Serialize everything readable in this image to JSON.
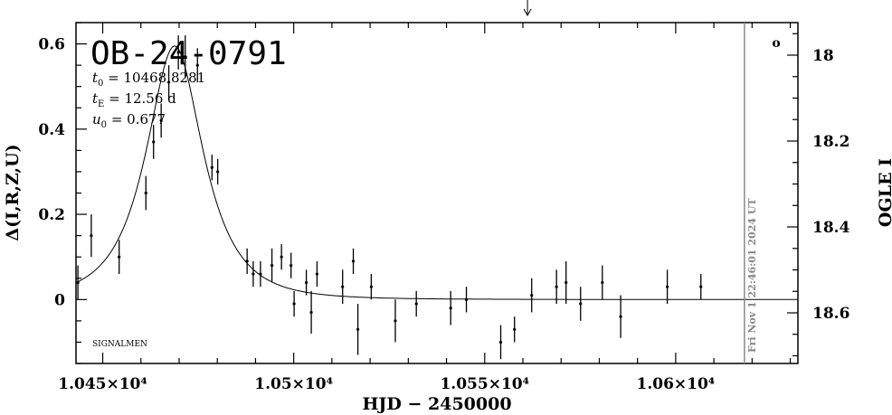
{
  "chart_data": {
    "type": "scatter",
    "title": "OB-24-0791",
    "params": [
      {
        "sym": "t",
        "sub": "0",
        "rest": " = 10468.8281"
      },
      {
        "sym": "t",
        "sub": "E",
        "rest": " = 12.56  d"
      },
      {
        "sym": "u",
        "sub": "0",
        "rest": " = 0.677"
      }
    ],
    "footer_label": "SIGNALMEN",
    "date_stamp": "Fri Nov  1 22:46:01 2024 UT",
    "marker_symbol": "o",
    "xlabel": "HJD  −  2450000",
    "ylabel_left": "Δ(I,R,Z,U)",
    "ylabel_right": "OGLE I",
    "xlim": [
      10443,
      10632
    ],
    "ylim_left": [
      -0.15,
      0.65
    ],
    "ylim_right_ticks": [
      {
        "value": 18.0,
        "label": "18"
      },
      {
        "value": 18.2,
        "label": "18.2"
      },
      {
        "value": 18.4,
        "label": "18.4"
      },
      {
        "value": 18.6,
        "label": "18.6"
      }
    ],
    "x_ticks": [
      {
        "value": 10450,
        "label": "1.045×10⁴"
      },
      {
        "value": 10500,
        "label": "1.05×10⁴"
      },
      {
        "value": 10550,
        "label": "1.055×10⁴"
      },
      {
        "value": 10600,
        "label": "1.06×10⁴"
      }
    ],
    "y_ticks": [
      {
        "value": 0,
        "label": "0"
      },
      {
        "value": 0.2,
        "label": "0.2"
      },
      {
        "value": 0.4,
        "label": "0.4"
      },
      {
        "value": 0.6,
        "label": "0.6"
      }
    ],
    "arrow_x": 10561.2,
    "now_line_x": 10618,
    "model": {
      "t0": 10468.8281,
      "tE": 12.56,
      "u0": 0.677,
      "baseline": 0,
      "peak_delta": 0.595
    },
    "series": [
      {
        "x": [
          10443.5,
          10447.0,
          10454.3,
          10461.3,
          10463.3,
          10465.3,
          10467.3,
          10469.8,
          10471.6,
          10474.8,
          10478.6,
          10480.1,
          10487.8,
          10489.4,
          10491.3,
          10494.3,
          10496.8,
          10499.3,
          10500.1,
          10503.3,
          10504.6,
          10506.1,
          10512.8,
          10515.6,
          10516.8,
          10520.3,
          10526.6,
          10532.1,
          10541.1,
          10545.2,
          10554.2,
          10557.8,
          10562.3,
          10568.8,
          10571.3,
          10575.1,
          10580.8,
          10585.6,
          10597.8,
          10606.6
        ],
        "y": [
          0.04,
          0.15,
          0.1,
          0.25,
          0.37,
          0.42,
          0.51,
          0.58,
          0.57,
          0.55,
          0.31,
          0.3,
          0.09,
          0.06,
          0.06,
          0.08,
          0.1,
          0.08,
          -0.01,
          0.04,
          -0.03,
          0.06,
          0.03,
          0.09,
          -0.07,
          0.03,
          -0.05,
          -0.01,
          -0.02,
          0.0,
          -0.1,
          -0.07,
          0.01,
          0.03,
          0.04,
          -0.01,
          0.04,
          -0.04,
          0.03,
          0.03
        ],
        "yerr": [
          0.04,
          0.05,
          0.04,
          0.04,
          0.04,
          0.04,
          0.04,
          0.04,
          0.05,
          0.04,
          0.03,
          0.03,
          0.03,
          0.03,
          0.03,
          0.04,
          0.03,
          0.03,
          0.03,
          0.03,
          0.05,
          0.03,
          0.04,
          0.03,
          0.06,
          0.03,
          0.05,
          0.03,
          0.04,
          0.03,
          0.04,
          0.03,
          0.04,
          0.04,
          0.05,
          0.04,
          0.04,
          0.05,
          0.04,
          0.03
        ]
      }
    ]
  }
}
